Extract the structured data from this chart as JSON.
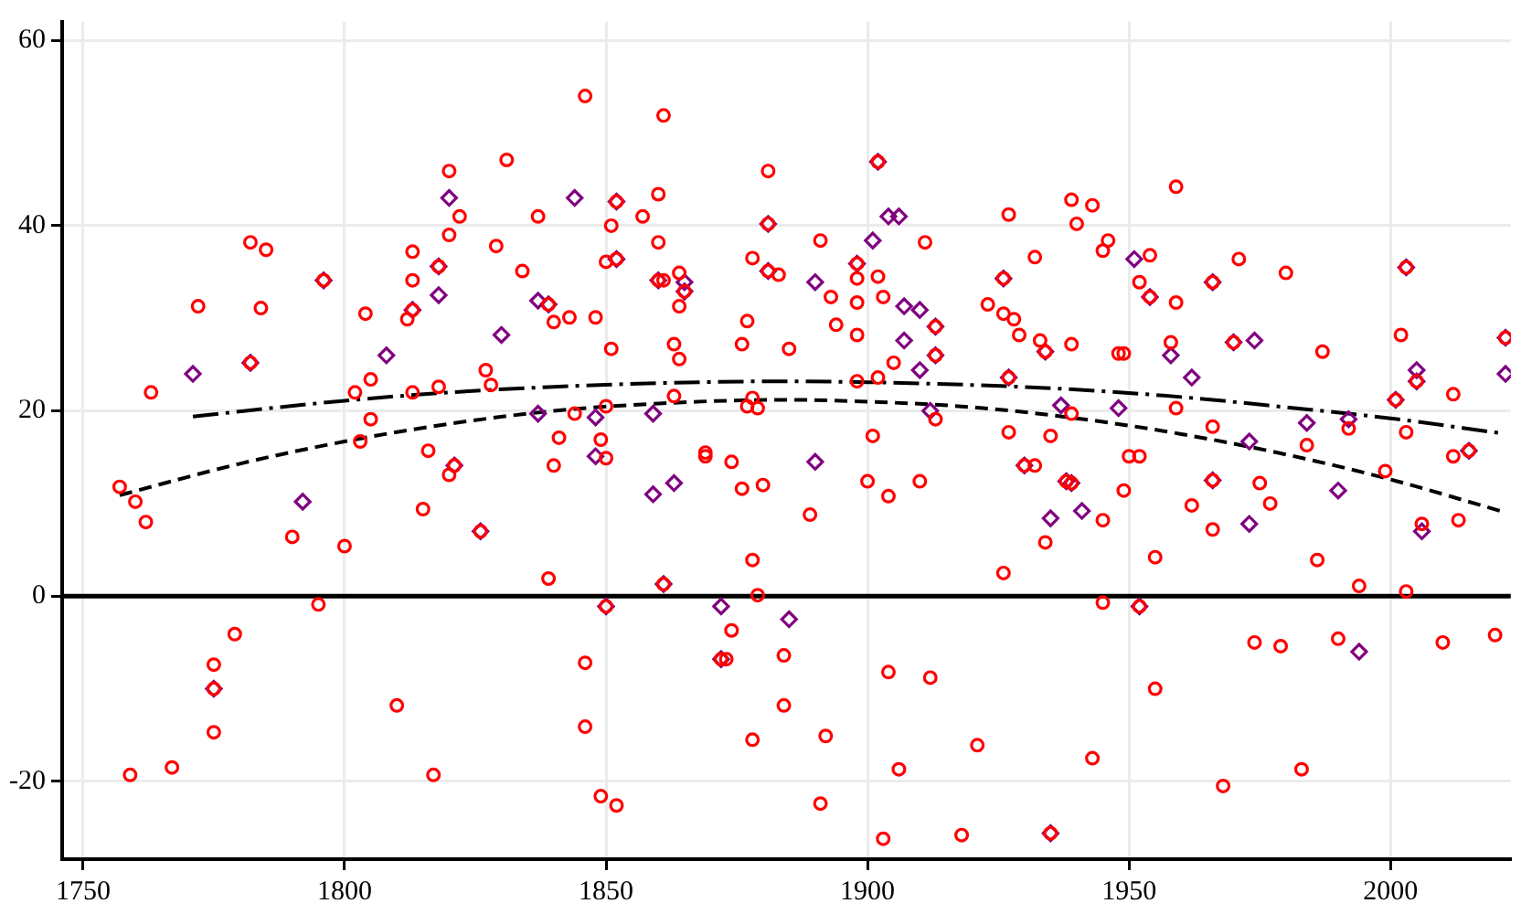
{
  "chart_data": {
    "type": "scatter",
    "xlim": [
      1746,
      2023
    ],
    "ylim": [
      -28.4,
      62
    ],
    "xticks": [
      1750,
      1800,
      1850,
      1900,
      1950,
      2000
    ],
    "yticks": [
      -20,
      0,
      20,
      40,
      60
    ],
    "grid": true,
    "legend": false,
    "ref_lines": [
      {
        "axis": "y",
        "value": 0,
        "color": "#000000",
        "line_style": "solid"
      }
    ],
    "series": [
      {
        "color": "#ff0000",
        "marker": "circle",
        "x": [
          1757,
          1760,
          1762,
          1790,
          1800,
          1803,
          1816,
          1821,
          1820,
          1815,
          1826,
          1839,
          1841,
          1840,
          1795,
          1779,
          1775,
          1775,
          1775,
          1810,
          1759,
          1767,
          1817,
          1763,
          1772,
          1782,
          1785,
          1784,
          1782,
          1796,
          1804,
          1805,
          1802,
          1805,
          1813,
          1813,
          1813,
          1812,
          1813,
          1818,
          1818,
          1820,
          1822,
          1820,
          1831,
          1829,
          1834,
          1827,
          1828,
          1837,
          1839,
          1840,
          1843,
          1844,
          1846,
          1848,
          1851,
          1849,
          1850,
          1852,
          1851,
          1850,
          1852,
          1857,
          1860,
          1860,
          1861,
          1860,
          1861,
          1864,
          1865,
          1864,
          1863,
          1864,
          1863,
          1869,
          1881,
          1881,
          1881,
          1883,
          1878,
          1877,
          1876,
          1885,
          1878,
          1877,
          1879,
          1891,
          1893,
          1894,
          1898,
          1898,
          1898,
          1898,
          1898,
          1901,
          1902,
          1902,
          1903,
          1902,
          1905,
          1911,
          1913,
          1913,
          1913,
          1923,
          1926,
          1926,
          1928,
          1929,
          1927,
          1932,
          1933,
          1934,
          1927,
          1927,
          1939,
          1935,
          1939,
          1940,
          1939,
          1943,
          1945,
          1946,
          1948,
          1949,
          1954,
          1952,
          1954,
          1959,
          1959,
          1958,
          1959,
          1966,
          1971,
          1970,
          1966,
          1980,
          1987,
          1984,
          1992,
          2003,
          2002,
          2005,
          2001,
          2003,
          2012,
          2022,
          1939,
          1945,
          1949,
          1950,
          1952,
          1955,
          1945,
          1952,
          1955,
          1943,
          1962,
          1966,
          1966,
          1975,
          1977,
          1968,
          1974,
          1979,
          1986,
          1990,
          1994,
          1983,
          1999,
          2003,
          2012,
          2015,
          2006,
          2013,
          2010,
          2020,
          1850,
          1869,
          1874,
          1876,
          1880,
          1889,
          1878,
          1861,
          1879,
          1850,
          1874,
          1872,
          1873,
          1884,
          1846,
          1846,
          1884,
          1878,
          1892,
          1849,
          1852,
          1891,
          1900,
          1904,
          1910,
          1904,
          1912,
          1921,
          1906,
          1903,
          1918,
          1935,
          1926,
          1934,
          1930,
          1932,
          1938
        ],
        "values": [
          11.8,
          10.2,
          8.0,
          6.4,
          5.4,
          16.7,
          15.7,
          14.1,
          13.1,
          9.4,
          7.0,
          1.9,
          17.1,
          14.1,
          -0.9,
          -4.1,
          -7.4,
          -10.0,
          -14.7,
          -11.8,
          -19.3,
          -18.5,
          -19.3,
          22.0,
          31.3,
          38.2,
          37.4,
          31.1,
          25.2,
          34.1,
          30.5,
          23.4,
          22.0,
          19.1,
          37.2,
          34.1,
          30.9,
          29.9,
          22.0,
          35.6,
          22.6,
          45.9,
          41.0,
          39.0,
          47.1,
          37.8,
          35.1,
          24.4,
          22.8,
          41.0,
          31.5,
          29.6,
          30.1,
          19.7,
          54.0,
          30.1,
          26.7,
          16.9,
          20.5,
          42.6,
          40.0,
          36.1,
          36.4,
          41.0,
          43.4,
          38.2,
          51.9,
          34.1,
          34.1,
          34.9,
          32.9,
          31.3,
          27.2,
          25.6,
          21.6,
          15.5,
          45.9,
          40.2,
          35.1,
          34.7,
          36.5,
          29.7,
          27.2,
          26.7,
          21.4,
          20.5,
          20.3,
          38.4,
          32.3,
          29.3,
          34.3,
          31.7,
          28.2,
          35.9,
          23.2,
          17.3,
          46.9,
          34.5,
          32.3,
          23.6,
          25.2,
          38.2,
          29.1,
          26.0,
          19.1,
          31.5,
          34.3,
          30.5,
          29.9,
          28.2,
          41.2,
          36.6,
          27.6,
          26.4,
          23.6,
          17.7,
          19.7,
          17.3,
          42.8,
          40.2,
          27.2,
          42.2,
          37.3,
          38.4,
          26.2,
          26.2,
          36.8,
          33.9,
          32.3,
          31.7,
          44.2,
          27.4,
          20.3,
          33.9,
          36.4,
          27.4,
          18.3,
          34.9,
          26.4,
          16.3,
          18.1,
          35.5,
          28.2,
          23.2,
          21.2,
          17.7,
          21.8,
          27.9,
          12.2,
          8.2,
          11.4,
          15.1,
          15.1,
          4.2,
          -0.7,
          -1.1,
          -10.0,
          -17.5,
          9.8,
          12.5,
          7.2,
          12.2,
          10.0,
          -20.5,
          -5.0,
          -5.4,
          3.9,
          -4.6,
          1.1,
          -18.7,
          13.5,
          0.5,
          15.1,
          15.7,
          7.8,
          8.2,
          -5.0,
          -4.2,
          14.9,
          15.1,
          14.5,
          11.6,
          12.0,
          8.8,
          3.9,
          1.3,
          0.1,
          -1.1,
          -3.7,
          -6.8,
          -6.8,
          -6.4,
          -7.2,
          -14.1,
          -11.8,
          -15.5,
          -15.1,
          -21.6,
          -22.6,
          -22.4,
          12.4,
          10.8,
          12.4,
          -8.2,
          -8.8,
          -16.1,
          -18.7,
          -26.2,
          -25.8,
          -25.6,
          2.5,
          5.8,
          14.1,
          14.1,
          12.4
        ]
      },
      {
        "color": "#800080",
        "marker": "diamond",
        "x": [
          1771,
          1821,
          1826,
          1792,
          1775,
          1782,
          1796,
          1808,
          1813,
          1818,
          1818,
          1820,
          1830,
          1837,
          1839,
          1837,
          1844,
          1848,
          1852,
          1852,
          1859,
          1860,
          1865,
          1865,
          1881,
          1881,
          1890,
          1898,
          1901,
          1902,
          1904,
          1906,
          1907,
          1910,
          1907,
          1910,
          1913,
          1913,
          1912,
          1926,
          1934,
          1927,
          1937,
          1951,
          1954,
          1948,
          1958,
          1962,
          1966,
          1970,
          1974,
          1973,
          1984,
          1992,
          2003,
          2005,
          2005,
          2001,
          2022,
          2022,
          1939,
          1941,
          1952,
          1966,
          1973,
          1990,
          1994,
          2015,
          2006,
          1848,
          1859,
          1863,
          1890,
          1861,
          1850,
          1872,
          1885,
          1872,
          1935,
          1930,
          1938,
          1935
        ],
        "values": [
          24.0,
          14.1,
          7.0,
          10.2,
          -10.0,
          25.2,
          34.1,
          26.0,
          30.9,
          35.6,
          32.5,
          43.0,
          28.2,
          31.9,
          31.5,
          19.7,
          43.0,
          19.3,
          42.6,
          36.4,
          19.7,
          34.1,
          33.9,
          32.9,
          40.2,
          35.1,
          33.9,
          35.9,
          38.4,
          46.9,
          41.0,
          41.0,
          31.3,
          30.9,
          27.6,
          24.4,
          29.1,
          26.0,
          20.0,
          34.3,
          26.4,
          23.6,
          20.6,
          36.4,
          32.3,
          20.3,
          26.0,
          23.6,
          33.9,
          27.4,
          27.6,
          16.7,
          18.7,
          19.1,
          35.5,
          24.4,
          23.2,
          21.2,
          27.9,
          24.0,
          12.2,
          9.2,
          -1.1,
          12.5,
          7.8,
          11.4,
          -6.0,
          15.7,
          7.0,
          15.1,
          11.0,
          12.2,
          14.5,
          1.3,
          -1.1,
          -1.1,
          -2.5,
          -6.8,
          8.4,
          14.1,
          12.4,
          -25.6
        ]
      },
      {
        "type": "line",
        "color": "#000000",
        "line_style": "dashed",
        "marker": "none",
        "x": [
          1757,
          1780,
          1800,
          1820,
          1840,
          1860,
          1884,
          1900,
          1920,
          1940,
          1960,
          1980,
          2000,
          2021
        ],
        "values": [
          10.9,
          14.3,
          16.7,
          18.6,
          20.0,
          20.8,
          21.2,
          21.0,
          20.4,
          19.2,
          17.5,
          15.3,
          12.6,
          9.2
        ]
      },
      {
        "type": "line",
        "color": "#000000",
        "line_style": "dashdot",
        "marker": "none",
        "x": [
          1771,
          1800,
          1820,
          1840,
          1860,
          1884,
          1900,
          1920,
          1940,
          1960,
          1980,
          2000,
          2021
        ],
        "values": [
          19.4,
          21.1,
          22.0,
          22.6,
          23.0,
          23.2,
          23.1,
          22.8,
          22.3,
          21.5,
          20.4,
          19.2,
          17.6
        ]
      }
    ]
  }
}
